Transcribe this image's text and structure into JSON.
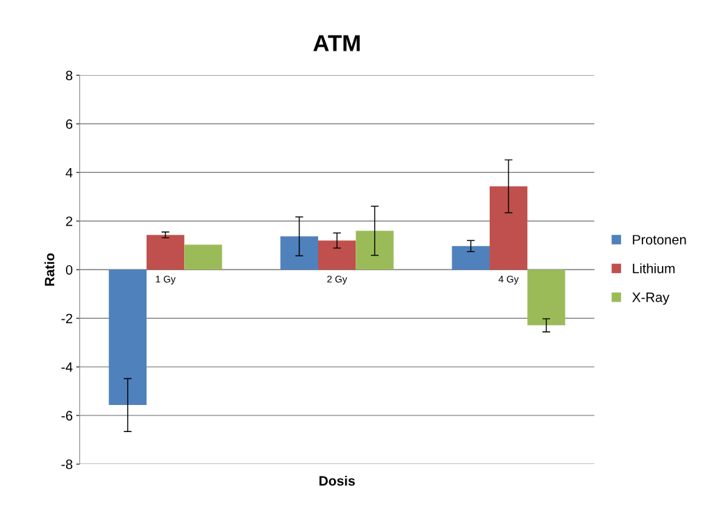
{
  "chart_data": {
    "type": "bar",
    "title": "ATM",
    "xlabel": "Dosis",
    "ylabel": "Ratio",
    "categories": [
      "1 Gy",
      "2 Gy",
      "4 Gy"
    ],
    "series": [
      {
        "name": "Protonen",
        "color": "#4f81bd",
        "values": [
          -5.57,
          1.37,
          0.97
        ],
        "errors": [
          1.09,
          0.8,
          0.23
        ]
      },
      {
        "name": "Lithium",
        "color": "#c0504d",
        "values": [
          1.43,
          1.2,
          3.43
        ],
        "errors": [
          0.12,
          0.31,
          1.09
        ]
      },
      {
        "name": "X-Ray",
        "color": "#9bbb59",
        "values": [
          1.03,
          1.6,
          -2.29
        ],
        "errors": [
          null,
          1.01,
          0.27
        ]
      }
    ],
    "ylim": [
      -8,
      8
    ],
    "yticks": [
      -8,
      -6,
      -4,
      -2,
      0,
      2,
      4,
      6,
      8
    ],
    "grid": "y",
    "legend": "right"
  }
}
